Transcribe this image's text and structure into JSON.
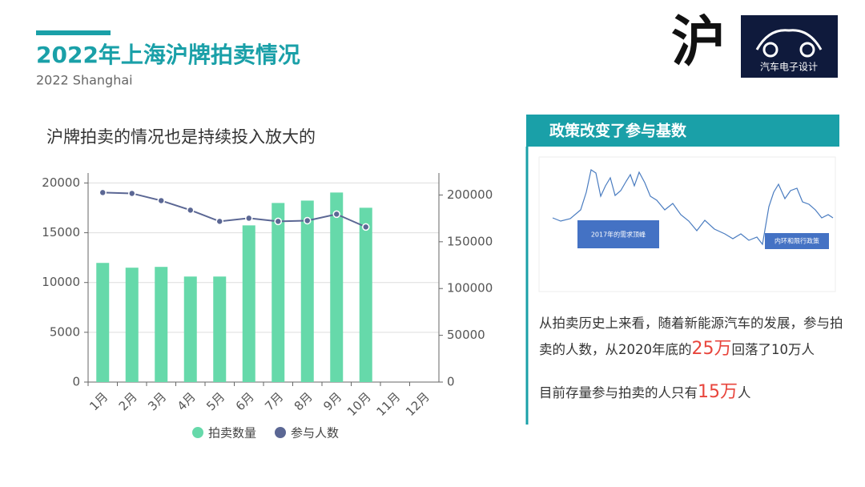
{
  "header": {
    "title": "2022年上海沪牌拍卖情况",
    "subtitle": "2022 Shanghai"
  },
  "logo": {
    "mark": "沪",
    "brand": "汽车电子设计"
  },
  "chart_data": {
    "type": "bar-line",
    "title": "沪牌拍卖的情况也是持续投入放大的",
    "categories": [
      "1月",
      "2月",
      "3月",
      "4月",
      "5月",
      "6月",
      "7月",
      "8月",
      "9月",
      "10月",
      "11月",
      "12月"
    ],
    "series": [
      {
        "name": "拍卖数量",
        "type": "bar",
        "color": "#66d9aa",
        "values": [
          11970,
          11490,
          11570,
          10600,
          10600,
          15740,
          17990,
          18230,
          19040,
          17510,
          null,
          null
        ]
      },
      {
        "name": "参与人数",
        "type": "line",
        "axis": "y2",
        "color": "#5b6794",
        "values": [
          202600,
          201700,
          194000,
          183800,
          171800,
          175200,
          171800,
          172600,
          179500,
          165800,
          null,
          null
        ]
      }
    ],
    "ylim": [
      0,
      21000
    ],
    "yticks": [
      0,
      5000,
      10000,
      15000,
      20000
    ],
    "y2lim": [
      0,
      223500
    ],
    "y2ticks": [
      0,
      50000,
      100000,
      150000,
      200000
    ],
    "grid": true,
    "legend": "bottom"
  },
  "side_panel": {
    "title": "政策改变了参与基数",
    "inset_annotations": [
      "2017年的需求顶峰",
      "内环和限行政策"
    ],
    "paragraphs": [
      [
        "从拍卖历史上来看，随着新能源汽车的发展，参与拍卖的人数，从2020年底的",
        "25万",
        "回落了10万人"
      ],
      [
        "目前存量参与拍卖的人只有",
        "15万",
        "人"
      ]
    ]
  }
}
